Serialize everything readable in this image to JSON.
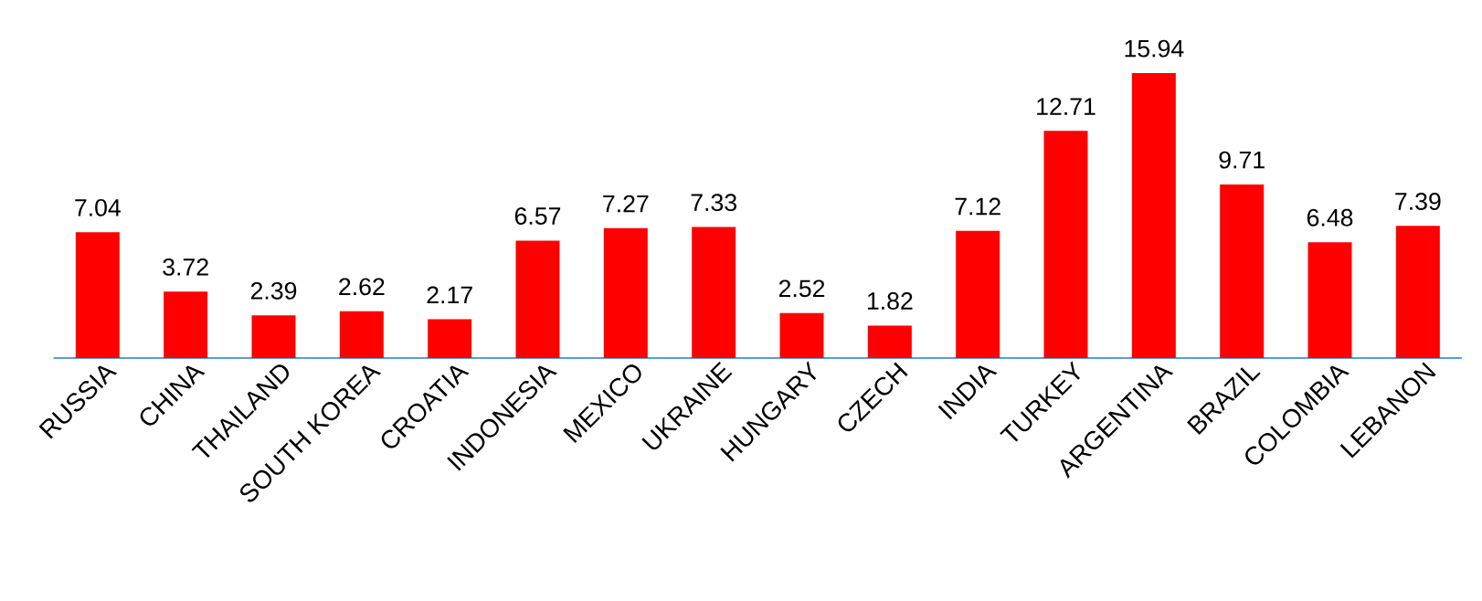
{
  "chart_data": {
    "type": "bar",
    "categories": [
      "RUSSIA",
      "CHINA",
      "THAILAND",
      "SOUTH KOREA",
      "CROATIA",
      "INDONESIA",
      "MEXICO",
      "UKRAINE",
      "HUNGARY",
      "CZECH",
      "INDIA",
      "TURKEY",
      "ARGENTINA",
      "BRAZIL",
      "COLOMBIA",
      "LEBANON"
    ],
    "values": [
      7.04,
      3.72,
      2.39,
      2.62,
      2.17,
      6.57,
      7.27,
      7.33,
      2.52,
      1.82,
      7.12,
      12.71,
      15.94,
      9.71,
      6.48,
      7.39
    ],
    "color": "#ff0000",
    "data_labels": true
  }
}
